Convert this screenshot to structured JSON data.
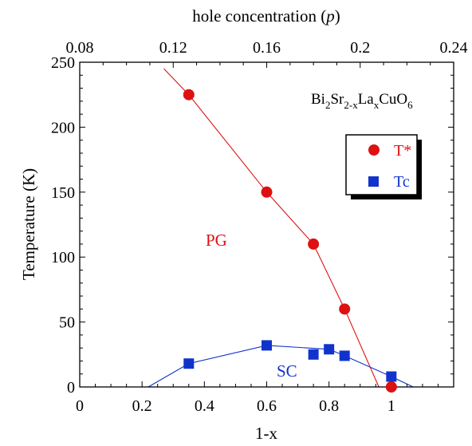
{
  "chart_data": {
    "type": "scatter",
    "title": "",
    "xlabel": "1-x",
    "ylabel": "Temperature (K)",
    "top_xlabel_prefix": "hole concentration (",
    "top_xlabel_var": "p",
    "top_xlabel_suffix": ")",
    "xlim": [
      0,
      1.2
    ],
    "ylim": [
      0,
      250
    ],
    "top_xlim": [
      0.08,
      0.24
    ],
    "x_ticks": [
      0,
      0.2,
      0.4,
      0.6,
      0.8,
      1
    ],
    "x_tick_labels": [
      "0",
      "0.2",
      "0.4",
      "0.6",
      "0.8",
      "1"
    ],
    "y_ticks": [
      0,
      50,
      100,
      150,
      200,
      250
    ],
    "y_tick_labels": [
      "0",
      "50",
      "100",
      "150",
      "200",
      "250"
    ],
    "top_ticks": [
      0.08,
      0.12,
      0.16,
      0.2,
      0.24
    ],
    "top_tick_labels": [
      "0.08",
      "0.12",
      "0.16",
      "0.2",
      "0.24"
    ],
    "grid": false,
    "legend_position": "upper-right",
    "formula": {
      "base1": "Bi",
      "sub1": "2",
      "base2": "Sr",
      "sub2": "2-x",
      "base3": "La",
      "sub3": "x",
      "base4": "CuO",
      "sub4": "6"
    },
    "region_labels": [
      {
        "text": "PG",
        "color": "#dd1111"
      },
      {
        "text": "SC",
        "color": "#1133cc"
      }
    ],
    "series": [
      {
        "name": "T*",
        "color": "#dd1111",
        "marker": "circle",
        "x": [
          0.35,
          0.6,
          0.75,
          0.85,
          1.0
        ],
        "y": [
          225,
          150,
          110,
          60,
          0
        ],
        "line_x": [
          0.27,
          0.35,
          0.6,
          0.75,
          0.85,
          0.96
        ],
        "line_y": [
          245,
          225,
          150,
          110,
          60,
          0
        ]
      },
      {
        "name": "Tc",
        "color": "#1133cc",
        "marker": "square",
        "x": [
          0.35,
          0.6,
          0.75,
          0.8,
          0.85,
          1.0
        ],
        "y": [
          18,
          32,
          25,
          29,
          24,
          8
        ],
        "line_x": [
          0.22,
          0.35,
          0.6,
          0.8,
          0.85,
          1.0,
          1.07
        ],
        "line_y": [
          0,
          18,
          32,
          29,
          24,
          8,
          0
        ]
      }
    ]
  }
}
